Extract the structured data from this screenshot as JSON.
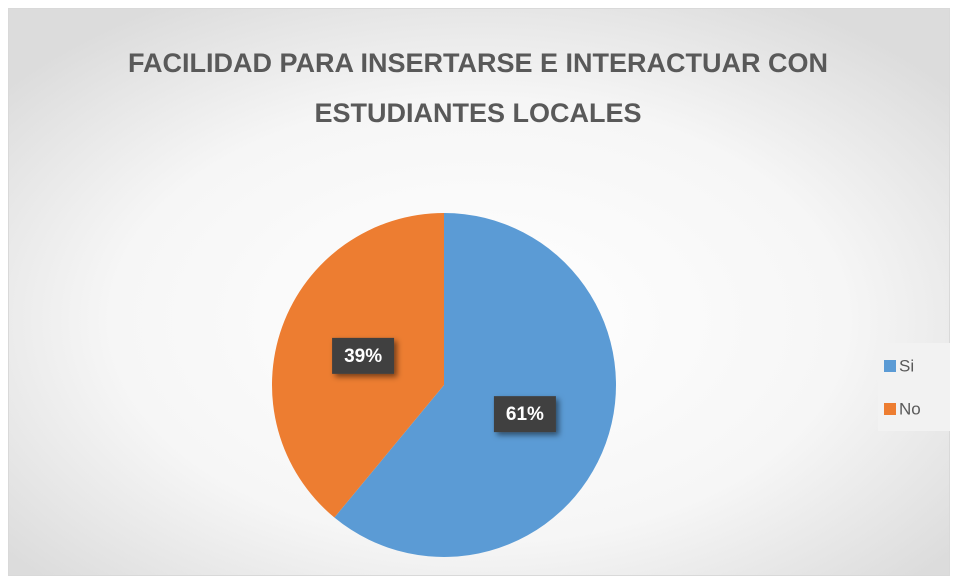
{
  "chart_data": {
    "type": "pie",
    "title": "FACILIDAD PARA INSERTARSE E INTERACTUAR CON ESTUDIANTES LOCALES",
    "categories": [
      "Si",
      "No"
    ],
    "values": [
      61,
      39
    ],
    "value_labels": [
      "61%",
      "39%"
    ],
    "colors": [
      "#5b9bd5",
      "#ed7d31"
    ],
    "legend": "right"
  }
}
